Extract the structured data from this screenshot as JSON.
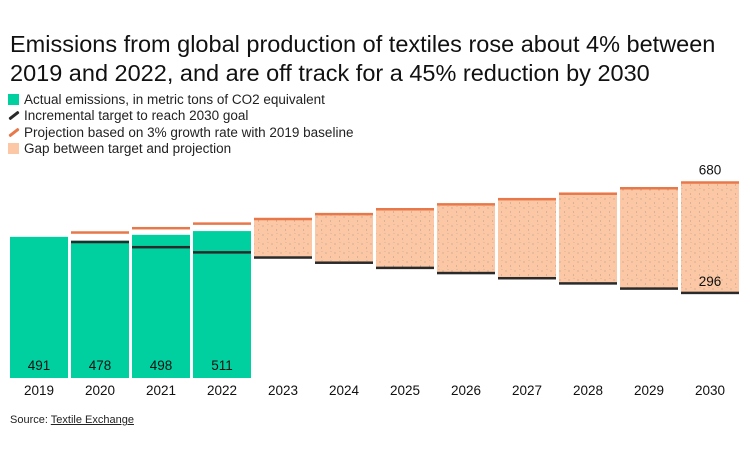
{
  "title": "Emissions from global production of textiles rose about 4% between 2019 and 2022, and are off track for a 45% reduction by 2030",
  "legend": [
    {
      "label": "Actual emissions, in metric tons of CO2 equivalent",
      "color": "#00d0a0",
      "kind": "square"
    },
    {
      "label": "Incremental target to reach 2030 goal",
      "color": "#2a2a2a",
      "kind": "line"
    },
    {
      "label": "Projection based on 3% growth rate with 2019 baseline",
      "color": "#e8784a",
      "kind": "line"
    },
    {
      "label": "Gap between target and projection",
      "color": "#fbc7a4",
      "kind": "square"
    }
  ],
  "source": {
    "prefix": "Source: ",
    "link": "Textile Exchange"
  },
  "chart_data": {
    "type": "bar",
    "categories": [
      "2019",
      "2020",
      "2021",
      "2022",
      "2023",
      "2024",
      "2025",
      "2026",
      "2027",
      "2028",
      "2029",
      "2030"
    ],
    "series": [
      {
        "name": "Actual emissions, in metric tons of CO2 equivalent",
        "values": [
          491,
          478,
          498,
          511,
          null,
          null,
          null,
          null,
          null,
          null,
          null,
          null
        ]
      },
      {
        "name": "Incremental target to reach 2030 goal",
        "values": [
          491,
          473,
          455,
          437,
          419,
          401,
          383,
          365,
          347,
          329,
          311,
          296
        ]
      },
      {
        "name": "Projection based on 3% growth rate with 2019 baseline",
        "values": [
          491,
          506,
          521,
          537,
          553,
          570,
          587,
          604,
          622,
          641,
          660,
          680
        ]
      }
    ],
    "bar_labels": [
      "491",
      "478",
      "498",
      "511",
      "",
      "",
      "",
      "",
      "",
      "",
      "",
      ""
    ],
    "end_labels": {
      "projection": "680",
      "target": "296"
    },
    "ylim": [
      0,
      680
    ],
    "colors": {
      "actual": "#00d0a0",
      "target": "#2a2a2a",
      "projection": "#e8784a",
      "gap": "#fbc7a4",
      "gap_dots": "#9a8f87"
    }
  }
}
